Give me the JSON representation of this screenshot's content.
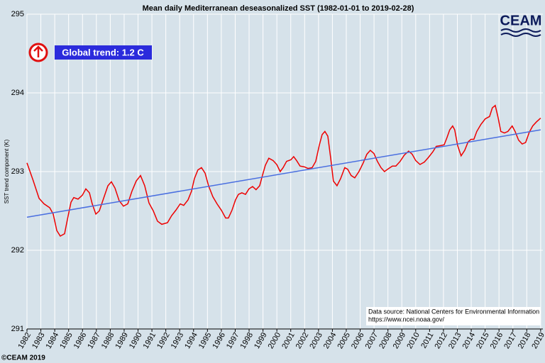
{
  "chart_data": {
    "type": "line",
    "title": "Mean daily Mediterranean deseasonalized SST (1982-01-01 to 2019-02-28)",
    "ylabel": "SST trend component (K)",
    "annotation": "Global trend: 1.2 C",
    "source": [
      "Data source: National Centers for Environmental Information",
      "https://www.ncei.noaa.gov/"
    ],
    "copyright": "©CEAM 2019",
    "logo": "CEAM",
    "xlim": [
      1982,
      2019.16
    ],
    "xticks": [
      1982,
      1983,
      1984,
      1985,
      1986,
      1987,
      1988,
      1989,
      1990,
      1991,
      1992,
      1993,
      1994,
      1995,
      1996,
      1997,
      1998,
      1999,
      2000,
      2001,
      2002,
      2003,
      2004,
      2005,
      2006,
      2007,
      2008,
      2009,
      2010,
      2011,
      2012,
      2013,
      2014,
      2015,
      2016,
      2017,
      2018,
      2019
    ],
    "ylim": [
      291,
      295
    ],
    "yticks": [
      291,
      292,
      293,
      294,
      295
    ],
    "grid": true,
    "series": [
      {
        "color": "#ee0000",
        "x": [
          1982.0,
          1982.46,
          1982.87,
          1983.23,
          1983.64,
          1983.89,
          1984.15,
          1984.4,
          1984.71,
          1984.91,
          1985.17,
          1985.37,
          1985.68,
          1985.99,
          1986.24,
          1986.5,
          1986.7,
          1986.96,
          1987.21,
          1987.52,
          1987.83,
          1988.08,
          1988.34,
          1988.64,
          1988.95,
          1989.26,
          1989.56,
          1989.87,
          1990.18,
          1990.48,
          1990.79,
          1991.1,
          1991.4,
          1991.71,
          1992.12,
          1992.42,
          1992.73,
          1993.04,
          1993.29,
          1993.6,
          1993.85,
          1994.06,
          1994.31,
          1994.57,
          1994.83,
          1995.08,
          1995.39,
          1995.69,
          1996.0,
          1996.31,
          1996.51,
          1996.77,
          1997.02,
          1997.23,
          1997.48,
          1997.74,
          1997.99,
          1998.25,
          1998.5,
          1998.76,
          1998.96,
          1999.17,
          1999.42,
          1999.73,
          1999.99,
          2000.24,
          2000.45,
          2000.7,
          2001.01,
          2001.21,
          2001.42,
          2001.67,
          2001.98,
          2002.24,
          2002.54,
          2002.8,
          2003.05,
          2003.26,
          2003.46,
          2003.67,
          2003.87,
          2004.07,
          2004.33,
          2004.59,
          2004.89,
          2005.1,
          2005.35,
          2005.61,
          2005.91,
          2006.22,
          2006.48,
          2006.73,
          2006.99,
          2007.24,
          2007.5,
          2007.75,
          2008.06,
          2008.32,
          2008.57,
          2008.88,
          2009.18,
          2009.49,
          2009.75,
          2010.0,
          2010.31,
          2010.62,
          2010.92,
          2011.23,
          2011.48,
          2011.79,
          2012.05,
          2012.25,
          2012.45,
          2012.66,
          2012.81,
          2013.02,
          2013.27,
          2013.53,
          2013.78,
          2013.99,
          2014.19,
          2014.4,
          2014.7,
          2015.01,
          2015.32,
          2015.52,
          2015.73,
          2015.93,
          2016.13,
          2016.39,
          2016.64,
          2016.95,
          2017.16,
          2017.41,
          2017.67,
          2017.92,
          2018.18,
          2018.43,
          2018.69,
          2019.0
        ],
        "values": [
          293.11,
          292.88,
          292.66,
          292.59,
          292.54,
          292.46,
          292.25,
          292.18,
          292.21,
          292.39,
          292.61,
          292.67,
          292.65,
          292.7,
          292.78,
          292.73,
          292.59,
          292.46,
          292.5,
          292.66,
          292.82,
          292.87,
          292.79,
          292.63,
          292.56,
          292.59,
          292.75,
          292.88,
          292.95,
          292.82,
          292.6,
          292.5,
          292.37,
          292.33,
          292.35,
          292.44,
          292.51,
          292.59,
          292.57,
          292.64,
          292.75,
          292.91,
          293.02,
          293.05,
          292.98,
          292.82,
          292.68,
          292.59,
          292.51,
          292.41,
          292.41,
          292.51,
          292.64,
          292.71,
          292.73,
          292.71,
          292.78,
          292.81,
          292.77,
          292.82,
          292.95,
          293.08,
          293.17,
          293.14,
          293.09,
          293.0,
          293.05,
          293.13,
          293.15,
          293.19,
          293.14,
          293.07,
          293.06,
          293.04,
          293.05,
          293.13,
          293.33,
          293.47,
          293.51,
          293.45,
          293.18,
          292.88,
          292.82,
          292.91,
          293.05,
          293.03,
          292.95,
          292.92,
          293.0,
          293.11,
          293.22,
          293.27,
          293.23,
          293.13,
          293.05,
          293.0,
          293.04,
          293.07,
          293.07,
          293.13,
          293.21,
          293.26,
          293.22,
          293.14,
          293.09,
          293.12,
          293.18,
          293.25,
          293.32,
          293.33,
          293.34,
          293.43,
          293.53,
          293.58,
          293.53,
          293.33,
          293.2,
          293.27,
          293.38,
          293.41,
          293.41,
          293.51,
          293.6,
          293.67,
          293.7,
          293.81,
          293.84,
          293.69,
          293.51,
          293.49,
          293.51,
          293.58,
          293.51,
          293.4,
          293.35,
          293.37,
          293.5,
          293.58,
          293.63,
          293.68
        ]
      },
      {
        "color": "#4a6fe0",
        "x": [
          1982,
          2019
        ],
        "values": [
          292.42,
          293.53
        ]
      }
    ]
  }
}
